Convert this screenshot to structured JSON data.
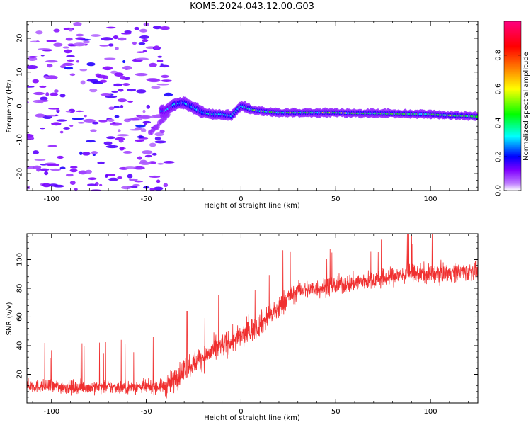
{
  "title": "KOM5.2024.043.12.00.G03",
  "chart_data": [
    {
      "type": "heatmap",
      "xlabel": "Height of straight line (km)",
      "ylabel": "Frequency (Hz)",
      "xlim": [
        -113,
        125
      ],
      "ylim": [
        -25,
        25
      ],
      "xticks": [
        -100,
        -50,
        0,
        50,
        100
      ],
      "yticks": [
        -20,
        -10,
        0,
        10,
        20
      ],
      "colorbar": {
        "label": "Normalized spectral amplitude",
        "range": [
          0.0,
          1.0
        ],
        "ticks": [
          0.0,
          0.2,
          0.4,
          0.6,
          0.8
        ],
        "colors": [
          "#ffffff",
          "#8000ff",
          "#0000ff",
          "#00ffff",
          "#00ff00",
          "#ffff00",
          "#ff8000",
          "#ff0000",
          "#ff0080"
        ]
      },
      "track": {
        "x": [
          -40,
          -35,
          -30,
          -25,
          -20,
          -15,
          -10,
          -5,
          0,
          5,
          10,
          20,
          30,
          40,
          50,
          60,
          70,
          80,
          90,
          100,
          110,
          120,
          125
        ],
        "y": [
          -1.5,
          0.5,
          1.0,
          -0.5,
          -2.0,
          -2.5,
          -2.5,
          -3.0,
          0.0,
          -1.0,
          -1.5,
          -2.0,
          -2.0,
          -2.0,
          -2.0,
          -2.2,
          -2.2,
          -2.3,
          -2.4,
          -2.5,
          -2.8,
          -3.0,
          -3.2
        ]
      }
    },
    {
      "type": "line",
      "xlabel": "Height of straight line (km)",
      "ylabel": "SNR (v/v)",
      "xlim": [
        -113,
        125
      ],
      "ylim": [
        0,
        118
      ],
      "xticks": [
        -100,
        -50,
        0,
        50,
        100
      ],
      "yticks": [
        20,
        40,
        60,
        80,
        100
      ],
      "color": "#f03030",
      "trend": {
        "x": [
          -113,
          -90,
          -70,
          -50,
          -40,
          -35,
          -30,
          -20,
          -10,
          0,
          10,
          20,
          25,
          30,
          40,
          50,
          60,
          70,
          80,
          90,
          100,
          110,
          125
        ],
        "y": [
          12,
          11,
          11,
          11,
          12,
          16,
          24,
          32,
          40,
          46,
          55,
          66,
          74,
          78,
          80,
          82,
          84,
          86,
          88,
          90,
          90,
          91,
          92
        ]
      }
    }
  ]
}
